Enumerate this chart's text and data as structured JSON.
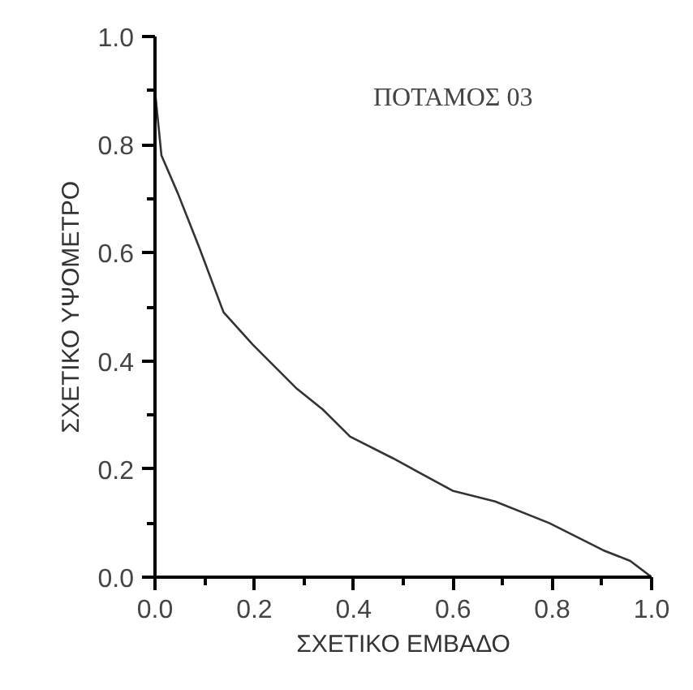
{
  "chart_data": {
    "type": "line",
    "xlabel": "ΣΧΕΤΙΚΟ ΕΜΒΑΔΟ",
    "ylabel": "ΣΧΕΤΙΚΟ ΥΨΟΜΕΤΡΟ",
    "annotations": [
      "ΠΟΤΑΜΟΣ 03"
    ],
    "series": [
      {
        "color": "#333333",
        "x": [
          0,
          0.013,
          0.046,
          0.089,
          0.138,
          0.197,
          0.284,
          0.338,
          0.393,
          0.479,
          0.599,
          0.685,
          0.794,
          0.902,
          0.957,
          1.0
        ],
        "values": [
          0.9,
          0.78,
          0.71,
          0.61,
          0.49,
          0.43,
          0.35,
          0.31,
          0.26,
          0.22,
          0.16,
          0.14,
          0.1,
          0.05,
          0.03,
          0.0
        ]
      }
    ],
    "xlim": [
      0,
      1.0
    ],
    "ylim": [
      0,
      1.0
    ],
    "xticks": [
      {
        "value": 0,
        "label": "0.0"
      },
      {
        "value": 0.1,
        "label": null
      },
      0.2,
      {
        "value": 0.3,
        "label": null
      },
      0.4,
      {
        "value": 0.5,
        "label": null
      },
      0.6,
      {
        "value": 0.7,
        "label": null
      },
      0.8,
      {
        "value": 0.9,
        "label": null
      },
      {
        "value": 1.0,
        "label": "1.0"
      }
    ],
    "yticks": [
      {
        "value": 0,
        "label": "0.0"
      },
      {
        "value": 0.1,
        "label": null
      },
      0.2,
      {
        "value": 0.3,
        "label": null
      },
      0.4,
      {
        "value": 0.5,
        "label": null
      },
      0.6,
      {
        "value": 0.7,
        "label": null
      },
      0.8,
      {
        "value": 0.9,
        "label": null
      },
      {
        "value": 1.0,
        "label": "1.0"
      }
    ],
    "grid": false,
    "marker": "none",
    "line_style": "solid"
  }
}
